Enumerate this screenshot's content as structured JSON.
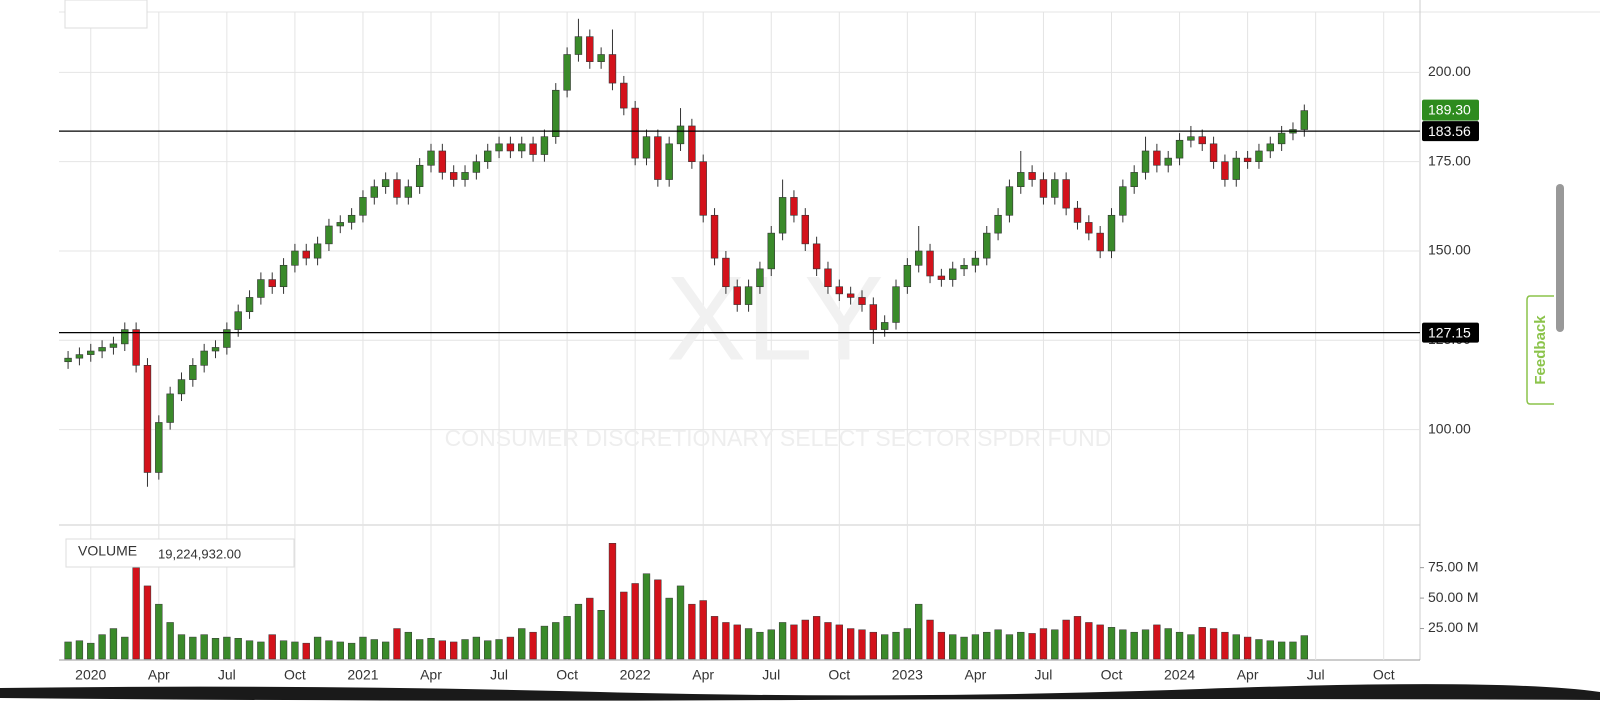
{
  "chart_data": {
    "type": "candlestick",
    "watermark_symbol": "XLY",
    "watermark_name": "CONSUMER DISCRETIONARY SELECT SECTOR SPDR FUND",
    "up_color": "#3a8a2a",
    "down_color": "#d3121b",
    "grid": true,
    "xlim": [
      -1.4,
      58.6
    ],
    "xticks": [
      {
        "value": 0,
        "label": "2020"
      },
      {
        "value": 3,
        "label": "Apr"
      },
      {
        "value": 6,
        "label": "Jul"
      },
      {
        "value": 9,
        "label": "Oct"
      },
      {
        "value": 12,
        "label": "2021"
      },
      {
        "value": 15,
        "label": "Apr"
      },
      {
        "value": 18,
        "label": "Jul"
      },
      {
        "value": 21,
        "label": "Oct"
      },
      {
        "value": 24,
        "label": "2022"
      },
      {
        "value": 27,
        "label": "Apr"
      },
      {
        "value": 30,
        "label": "Jul"
      },
      {
        "value": 33,
        "label": "Oct"
      },
      {
        "value": 36,
        "label": "2023"
      },
      {
        "value": 39,
        "label": "Apr"
      },
      {
        "value": 42,
        "label": "Jul"
      },
      {
        "value": 45,
        "label": "Oct"
      },
      {
        "value": 48,
        "label": "2024"
      },
      {
        "value": 51,
        "label": "Apr"
      },
      {
        "value": 54,
        "label": "Jul"
      },
      {
        "value": 57,
        "label": "Oct"
      }
    ],
    "ylim": [
      73.3,
      216.9
    ],
    "yticks": [
      {
        "value": 100,
        "label": "100.00"
      },
      {
        "value": 125,
        "label": "125.00"
      },
      {
        "value": 150,
        "label": "150.00"
      },
      {
        "value": 175,
        "label": "175.00"
      },
      {
        "value": 200,
        "label": "200.00"
      }
    ],
    "x": [
      -1,
      -0.5,
      0,
      0.5,
      1,
      1.5,
      2,
      2.5,
      3,
      3.5,
      4,
      4.5,
      5,
      5.5,
      6,
      6.5,
      7,
      7.5,
      8,
      8.5,
      9,
      9.5,
      10,
      10.5,
      11,
      11.5,
      12,
      12.5,
      13,
      13.5,
      14,
      14.5,
      15,
      15.5,
      16,
      16.5,
      17,
      17.5,
      18,
      18.5,
      19,
      19.5,
      20,
      20.5,
      21,
      21.5,
      22,
      22.5,
      23,
      23.5,
      24,
      24.5,
      25,
      25.5,
      26,
      26.5,
      27,
      27.5,
      28,
      28.5,
      29,
      29.5,
      30,
      30.5,
      31,
      31.5,
      32,
      32.5,
      33,
      33.5,
      34,
      34.5,
      35,
      35.5,
      36,
      36.5,
      37,
      37.5,
      38,
      38.5,
      39,
      39.5,
      40,
      40.5,
      41,
      41.5,
      42,
      42.5,
      43,
      43.5,
      44,
      44.5,
      45,
      45.5,
      46,
      46.5,
      47,
      47.5,
      48,
      48.5,
      49,
      49.5,
      50,
      50.5,
      51,
      51.5,
      52,
      52.5,
      53,
      53.5
    ],
    "open": [
      119,
      120,
      121,
      122,
      123,
      124,
      128,
      118,
      88,
      102,
      110,
      114,
      118,
      122,
      123,
      128,
      133,
      137,
      142,
      140,
      146,
      150,
      148,
      152,
      157,
      158,
      160,
      165,
      168,
      170,
      165,
      168,
      174,
      178,
      172,
      170,
      172,
      175,
      178,
      180,
      178,
      180,
      177,
      182,
      195,
      205,
      210,
      203,
      205,
      197,
      190,
      176,
      182,
      170,
      180,
      185,
      175,
      160,
      148,
      140,
      135,
      140,
      145,
      155,
      165,
      160,
      152,
      145,
      140,
      138,
      137,
      135,
      128,
      130,
      140,
      146,
      150,
      143,
      142,
      145,
      146,
      148,
      155,
      160,
      168,
      172,
      170,
      165,
      170,
      162,
      158,
      155,
      150,
      160,
      168,
      172,
      178,
      174,
      176,
      181,
      182,
      180,
      175,
      170,
      176,
      175,
      178,
      180,
      183,
      184
    ],
    "high": [
      122,
      123,
      124,
      125,
      126,
      130,
      130,
      120,
      104,
      112,
      116,
      120,
      124,
      125,
      130,
      135,
      139,
      144,
      144,
      148,
      152,
      152,
      154,
      159,
      160,
      162,
      167,
      170,
      172,
      172,
      170,
      176,
      180,
      180,
      174,
      174,
      177,
      180,
      182,
      182,
      182,
      182,
      184,
      197,
      207,
      215,
      212,
      207,
      212,
      199,
      192,
      184,
      184,
      182,
      190,
      187,
      177,
      162,
      150,
      142,
      142,
      147,
      157,
      170,
      167,
      162,
      154,
      147,
      142,
      140,
      139,
      137,
      132,
      142,
      148,
      157,
      152,
      145,
      147,
      148,
      150,
      157,
      162,
      170,
      178,
      174,
      172,
      172,
      172,
      164,
      160,
      157,
      162,
      170,
      174,
      182,
      180,
      178,
      183,
      185,
      184,
      182,
      177,
      178,
      178,
      180,
      182,
      185,
      186,
      191
    ],
    "low": [
      117,
      118,
      119,
      120,
      121,
      122,
      116,
      84,
      86,
      100,
      108,
      112,
      116,
      120,
      121,
      126,
      131,
      135,
      138,
      138,
      144,
      146,
      146,
      150,
      155,
      156,
      158,
      163,
      166,
      163,
      163,
      166,
      172,
      170,
      168,
      168,
      170,
      173,
      176,
      176,
      176,
      175,
      175,
      180,
      193,
      203,
      201,
      201,
      195,
      188,
      174,
      174,
      168,
      168,
      178,
      173,
      158,
      146,
      138,
      133,
      133,
      138,
      143,
      153,
      158,
      150,
      143,
      138,
      136,
      135,
      133,
      124,
      126,
      128,
      138,
      144,
      141,
      140,
      140,
      143,
      144,
      146,
      153,
      158,
      166,
      168,
      163,
      163,
      160,
      156,
      153,
      148,
      148,
      158,
      166,
      170,
      172,
      172,
      174,
      179,
      178,
      173,
      168,
      168,
      173,
      173,
      176,
      178,
      181,
      182
    ],
    "close": [
      120,
      121,
      122,
      123,
      124,
      128,
      118,
      88,
      102,
      110,
      114,
      118,
      122,
      123,
      128,
      133,
      137,
      142,
      140,
      146,
      150,
      148,
      152,
      157,
      158,
      160,
      165,
      168,
      170,
      165,
      168,
      174,
      178,
      172,
      170,
      172,
      175,
      178,
      180,
      178,
      180,
      177,
      182,
      195,
      205,
      210,
      203,
      205,
      197,
      190,
      176,
      182,
      170,
      180,
      185,
      175,
      160,
      148,
      140,
      135,
      140,
      145,
      155,
      165,
      160,
      152,
      145,
      140,
      138,
      137,
      135,
      128,
      130,
      140,
      146,
      150,
      143,
      142,
      145,
      146,
      148,
      155,
      160,
      168,
      172,
      170,
      165,
      170,
      162,
      158,
      155,
      150,
      160,
      168,
      172,
      178,
      174,
      176,
      181,
      182,
      180,
      175,
      170,
      176,
      175,
      178,
      180,
      183,
      184,
      189.3
    ],
    "last_price": {
      "value": 189.3,
      "label": "189.30"
    },
    "hlines": [
      183.56,
      127.15
    ],
    "volume_label": "VOLUME",
    "volume_readout": "19,224,932.00",
    "volume_ylim": [
      0,
      110000000
    ],
    "volume_yticks": [
      {
        "value": 25000000,
        "label": "25.00 M"
      },
      {
        "value": 50000000,
        "label": "50.00 M"
      },
      {
        "value": 75000000,
        "label": "75.00 M"
      }
    ],
    "volume": [
      14000000,
      15000000,
      13000000,
      20000000,
      25000000,
      18000000,
      75000000,
      60000000,
      45000000,
      30000000,
      20000000,
      18000000,
      20000000,
      17000000,
      18000000,
      17000000,
      15000000,
      14000000,
      20000000,
      15000000,
      14000000,
      13000000,
      18000000,
      15000000,
      14000000,
      13000000,
      18000000,
      16000000,
      14000000,
      25000000,
      22000000,
      16000000,
      17000000,
      15000000,
      14000000,
      16000000,
      18000000,
      15000000,
      16000000,
      18000000,
      25000000,
      22000000,
      27000000,
      30000000,
      35000000,
      45000000,
      50000000,
      40000000,
      95000000,
      55000000,
      62000000,
      70000000,
      65000000,
      50000000,
      60000000,
      45000000,
      48000000,
      35000000,
      30000000,
      28000000,
      25000000,
      22000000,
      24000000,
      30000000,
      28000000,
      32000000,
      35000000,
      30000000,
      28000000,
      25000000,
      24000000,
      22000000,
      20000000,
      22000000,
      25000000,
      45000000,
      32000000,
      22000000,
      20000000,
      18000000,
      20000000,
      22000000,
      24000000,
      20000000,
      22000000,
      21000000,
      25000000,
      24000000,
      32000000,
      35000000,
      30000000,
      28000000,
      26000000,
      24000000,
      22000000,
      24000000,
      28000000,
      25000000,
      22000000,
      20000000,
      26000000,
      25000000,
      22000000,
      20000000,
      18000000,
      16000000,
      15000000,
      14000000,
      14000000,
      19224932
    ]
  },
  "ui": {
    "feedback": "Feedback"
  }
}
